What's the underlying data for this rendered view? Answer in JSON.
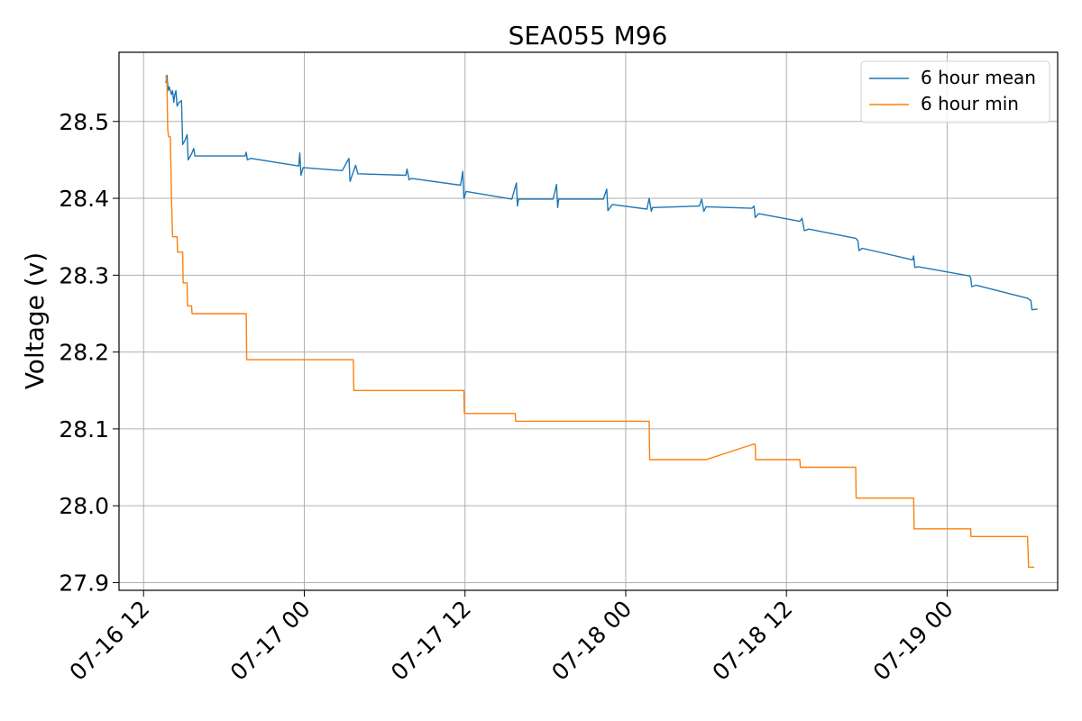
{
  "chart_data": {
    "type": "line",
    "title": "SEA055 M96",
    "xlabel": "",
    "ylabel": "Voltage (v)",
    "x_type": "datetime",
    "xlim": [
      "2024-07-16T10:10",
      "2024-07-19T08:15"
    ],
    "ylim": [
      27.89,
      28.59
    ],
    "x_ticks": [
      {
        "value": "2024-07-16T12:00",
        "label": "07-16 12"
      },
      {
        "value": "2024-07-17T00:00",
        "label": "07-17 00"
      },
      {
        "value": "2024-07-17T12:00",
        "label": "07-17 12"
      },
      {
        "value": "2024-07-18T00:00",
        "label": "07-18 00"
      },
      {
        "value": "2024-07-18T12:00",
        "label": "07-18 12"
      },
      {
        "value": "2024-07-19T00:00",
        "label": "07-19 00"
      }
    ],
    "y_ticks": [
      {
        "value": 27.9,
        "label": "27.9"
      },
      {
        "value": 28.0,
        "label": "28.0"
      },
      {
        "value": 28.1,
        "label": "28.1"
      },
      {
        "value": 28.2,
        "label": "28.2"
      },
      {
        "value": 28.3,
        "label": "28.3"
      },
      {
        "value": 28.4,
        "label": "28.4"
      },
      {
        "value": 28.5,
        "label": "28.5"
      }
    ],
    "grid": true,
    "legend": {
      "position": "top-right"
    },
    "series": [
      {
        "name": "6 hour mean",
        "color": "#1f77b4",
        "points": [
          [
            "2024-07-16T13:40",
            28.55
          ],
          [
            "2024-07-16T13:45",
            28.56
          ],
          [
            "2024-07-16T13:50",
            28.54
          ],
          [
            "2024-07-16T13:55",
            28.545
          ],
          [
            "2024-07-16T14:00",
            28.54
          ],
          [
            "2024-07-16T14:05",
            28.535
          ],
          [
            "2024-07-16T14:10",
            28.54
          ],
          [
            "2024-07-16T14:15",
            28.525
          ],
          [
            "2024-07-16T14:20",
            28.535
          ],
          [
            "2024-07-16T14:25",
            28.54
          ],
          [
            "2024-07-16T14:30",
            28.52
          ],
          [
            "2024-07-16T14:40",
            28.525
          ],
          [
            "2024-07-16T14:50",
            28.527
          ],
          [
            "2024-07-16T14:55",
            28.47
          ],
          [
            "2024-07-16T15:05",
            28.475
          ],
          [
            "2024-07-16T15:15",
            28.483
          ],
          [
            "2024-07-16T15:20",
            28.45
          ],
          [
            "2024-07-16T15:35",
            28.458
          ],
          [
            "2024-07-16T15:45",
            28.465
          ],
          [
            "2024-07-16T15:50",
            28.455
          ],
          [
            "2024-07-16T19:35",
            28.455
          ],
          [
            "2024-07-16T19:40",
            28.46
          ],
          [
            "2024-07-16T19:45",
            28.45
          ],
          [
            "2024-07-16T20:00",
            28.452
          ],
          [
            "2024-07-16T23:35",
            28.442
          ],
          [
            "2024-07-16T23:40",
            28.459
          ],
          [
            "2024-07-16T23:45",
            28.43
          ],
          [
            "2024-07-16T23:55",
            28.44
          ],
          [
            "2024-07-17T02:50",
            28.436
          ],
          [
            "2024-07-17T03:20",
            28.452
          ],
          [
            "2024-07-17T03:25",
            28.422
          ],
          [
            "2024-07-17T03:50",
            28.443
          ],
          [
            "2024-07-17T04:00",
            28.432
          ],
          [
            "2024-07-17T07:35",
            28.43
          ],
          [
            "2024-07-17T07:40",
            28.438
          ],
          [
            "2024-07-17T07:50",
            28.424
          ],
          [
            "2024-07-17T08:00",
            28.426
          ],
          [
            "2024-07-17T11:40",
            28.417
          ],
          [
            "2024-07-17T11:50",
            28.435
          ],
          [
            "2024-07-17T11:55",
            28.4
          ],
          [
            "2024-07-17T12:05",
            28.409
          ],
          [
            "2024-07-17T15:30",
            28.399
          ],
          [
            "2024-07-17T15:50",
            28.42
          ],
          [
            "2024-07-17T15:55",
            28.39
          ],
          [
            "2024-07-17T16:00",
            28.399
          ],
          [
            "2024-07-17T18:35",
            28.399
          ],
          [
            "2024-07-17T18:50",
            28.418
          ],
          [
            "2024-07-17T18:55",
            28.388
          ],
          [
            "2024-07-17T19:00",
            28.399
          ],
          [
            "2024-07-17T22:20",
            28.399
          ],
          [
            "2024-07-17T22:35",
            28.412
          ],
          [
            "2024-07-17T22:40",
            28.384
          ],
          [
            "2024-07-17T23:00",
            28.392
          ],
          [
            "2024-07-18T01:35",
            28.386
          ],
          [
            "2024-07-18T01:45",
            28.4
          ],
          [
            "2024-07-18T01:55",
            28.383
          ],
          [
            "2024-07-18T02:00",
            28.388
          ],
          [
            "2024-07-18T05:30",
            28.39
          ],
          [
            "2024-07-18T05:40",
            28.399
          ],
          [
            "2024-07-18T05:50",
            28.383
          ],
          [
            "2024-07-18T06:00",
            28.389
          ],
          [
            "2024-07-18T09:25",
            28.387
          ],
          [
            "2024-07-18T09:35",
            28.39
          ],
          [
            "2024-07-18T09:40",
            28.375
          ],
          [
            "2024-07-18T09:55",
            28.38
          ],
          [
            "2024-07-18T13:00",
            28.37
          ],
          [
            "2024-07-18T13:10",
            28.374
          ],
          [
            "2024-07-18T13:20",
            28.358
          ],
          [
            "2024-07-18T13:40",
            28.36
          ],
          [
            "2024-07-18T17:10",
            28.348
          ],
          [
            "2024-07-18T17:20",
            28.345
          ],
          [
            "2024-07-18T17:25",
            28.332
          ],
          [
            "2024-07-18T17:40",
            28.335
          ],
          [
            "2024-07-18T21:25",
            28.32
          ],
          [
            "2024-07-18T21:30",
            28.325
          ],
          [
            "2024-07-18T21:35",
            28.31
          ],
          [
            "2024-07-18T21:50",
            28.311
          ],
          [
            "2024-07-19T01:40",
            28.299
          ],
          [
            "2024-07-19T01:45",
            28.297
          ],
          [
            "2024-07-19T01:50",
            28.285
          ],
          [
            "2024-07-19T02:10",
            28.287
          ],
          [
            "2024-07-19T06:00",
            28.27
          ],
          [
            "2024-07-19T06:15",
            28.267
          ],
          [
            "2024-07-19T06:20",
            28.255
          ],
          [
            "2024-07-19T06:45",
            28.256
          ]
        ]
      },
      {
        "name": "6 hour min",
        "color": "#ff7f0e",
        "points": [
          [
            "2024-07-16T13:40",
            28.56
          ],
          [
            "2024-07-16T13:45",
            28.55
          ],
          [
            "2024-07-16T13:48",
            28.49
          ],
          [
            "2024-07-16T13:52",
            28.48
          ],
          [
            "2024-07-16T14:00",
            28.48
          ],
          [
            "2024-07-16T14:05",
            28.4
          ],
          [
            "2024-07-16T14:10",
            28.35
          ],
          [
            "2024-07-16T14:30",
            28.35
          ],
          [
            "2024-07-16T14:32",
            28.33
          ],
          [
            "2024-07-16T14:55",
            28.33
          ],
          [
            "2024-07-16T14:57",
            28.29
          ],
          [
            "2024-07-16T15:15",
            28.29
          ],
          [
            "2024-07-16T15:17",
            28.26
          ],
          [
            "2024-07-16T15:35",
            28.26
          ],
          [
            "2024-07-16T15:37",
            28.25
          ],
          [
            "2024-07-16T19:40",
            28.25
          ],
          [
            "2024-07-16T19:42",
            28.19
          ],
          [
            "2024-07-17T03:40",
            28.19
          ],
          [
            "2024-07-17T03:42",
            28.15
          ],
          [
            "2024-07-17T11:55",
            28.15
          ],
          [
            "2024-07-17T11:57",
            28.12
          ],
          [
            "2024-07-17T15:45",
            28.12
          ],
          [
            "2024-07-17T15:47",
            28.11
          ],
          [
            "2024-07-18T01:45",
            28.11
          ],
          [
            "2024-07-18T01:47",
            28.06
          ],
          [
            "2024-07-18T06:00",
            28.06
          ],
          [
            "2024-07-18T09:30",
            28.08
          ],
          [
            "2024-07-18T09:40",
            28.08
          ],
          [
            "2024-07-18T09:42",
            28.06
          ],
          [
            "2024-07-18T13:00",
            28.06
          ],
          [
            "2024-07-18T13:02",
            28.05
          ],
          [
            "2024-07-18T17:10",
            28.05
          ],
          [
            "2024-07-18T17:12",
            28.01
          ],
          [
            "2024-07-18T21:30",
            28.01
          ],
          [
            "2024-07-18T21:32",
            27.97
          ],
          [
            "2024-07-19T01:45",
            27.97
          ],
          [
            "2024-07-19T01:47",
            27.96
          ],
          [
            "2024-07-19T06:00",
            27.96
          ],
          [
            "2024-07-19T06:05",
            27.92
          ],
          [
            "2024-07-19T06:30",
            27.92
          ]
        ]
      }
    ]
  }
}
